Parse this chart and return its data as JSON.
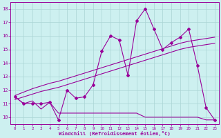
{
  "xlabel": "Windchill (Refroidissement éolien,°C)",
  "background_color": "#cdf0f0",
  "grid_color": "#aad4d4",
  "line_color": "#990099",
  "x_values": [
    0,
    1,
    2,
    3,
    4,
    5,
    6,
    7,
    8,
    9,
    10,
    11,
    12,
    13,
    14,
    15,
    16,
    17,
    18,
    19,
    20,
    21,
    22,
    23
  ],
  "y_line1": [
    11.5,
    11.0,
    11.0,
    11.0,
    11.1,
    9.8,
    12.0,
    11.4,
    11.5,
    12.4,
    14.9,
    16.0,
    15.7,
    13.1,
    17.1,
    18.0,
    16.5,
    15.0,
    15.5,
    15.9,
    16.5,
    13.8,
    10.7,
    9.8
  ],
  "y_line2": [
    11.5,
    11.0,
    11.2,
    10.6,
    11.1,
    10.3,
    10.3,
    10.3,
    10.3,
    10.3,
    10.3,
    10.3,
    10.3,
    10.3,
    10.3,
    10.0,
    10.0,
    10.0,
    10.0,
    10.0,
    10.0,
    10.0,
    9.8,
    9.8
  ],
  "y_regression1": [
    11.6,
    11.85,
    12.1,
    12.3,
    12.5,
    12.65,
    12.85,
    13.05,
    13.25,
    13.45,
    13.65,
    13.85,
    14.05,
    14.25,
    14.45,
    14.65,
    14.85,
    15.05,
    15.25,
    15.45,
    15.6,
    15.7,
    15.8,
    15.9
  ],
  "y_regression2": [
    11.3,
    11.5,
    11.7,
    11.9,
    12.05,
    12.2,
    12.4,
    12.6,
    12.8,
    13.0,
    13.2,
    13.4,
    13.6,
    13.8,
    14.0,
    14.2,
    14.4,
    14.6,
    14.8,
    15.0,
    15.15,
    15.25,
    15.35,
    15.45
  ],
  "ylim": [
    9.5,
    18.5
  ],
  "yticks": [
    10,
    11,
    12,
    13,
    14,
    15,
    16,
    17,
    18
  ],
  "xlim": [
    -0.5,
    23.5
  ],
  "xticks": [
    0,
    1,
    2,
    3,
    4,
    5,
    6,
    7,
    8,
    9,
    10,
    11,
    12,
    13,
    14,
    15,
    16,
    17,
    18,
    19,
    20,
    21,
    22,
    23
  ]
}
